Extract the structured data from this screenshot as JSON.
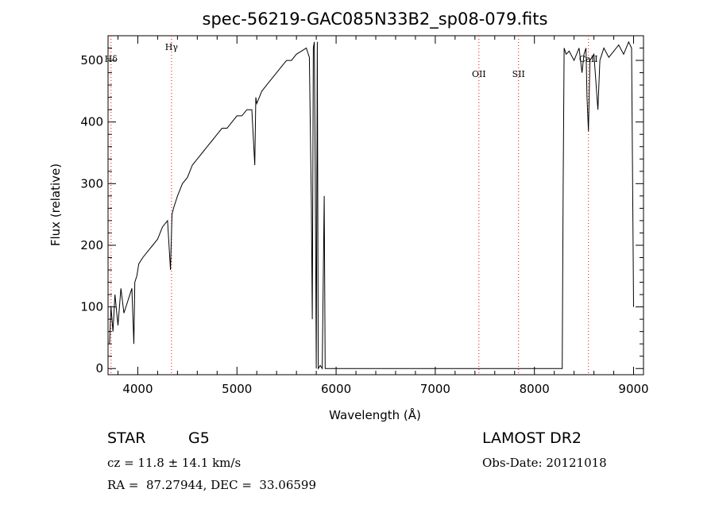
{
  "chart_data": {
    "type": "line",
    "title": "spec-56219-GAC085N33B2_sp08-079.fits",
    "xlabel": "Wavelength (Å)",
    "ylabel": "Flux (relative)",
    "xlim": [
      3700,
      9100
    ],
    "ylim": [
      -10,
      540
    ],
    "x_ticks": [
      4000,
      5000,
      6000,
      7000,
      8000,
      9000
    ],
    "y_ticks": [
      0,
      100,
      200,
      300,
      400,
      500
    ],
    "grid": false,
    "legend": "none",
    "line_color": "#000000",
    "marker_color": "#ff0000",
    "spectral_lines": [
      {
        "label": "Hδ",
        "wavelength": 3730
      },
      {
        "label": "Hγ",
        "wavelength": 4340
      },
      {
        "label": "OII",
        "wavelength": 7440
      },
      {
        "label": "SII",
        "wavelength": 7840
      },
      {
        "label": "CaII",
        "wavelength": 8545
      }
    ],
    "series": [
      {
        "x": [
          3715,
          3730,
          3750,
          3770,
          3800,
          3830,
          3860,
          3900,
          3940,
          3960,
          3970,
          3990,
          4010,
          4050,
          4100,
          4150,
          4200,
          4250,
          4300,
          4330,
          4345,
          4360,
          4400,
          4450,
          4500,
          4550,
          4600,
          4650,
          4700,
          4750,
          4800,
          4850,
          4900,
          4950,
          5000,
          5050,
          5100,
          5150,
          5180,
          5190,
          5200,
          5250,
          5300,
          5350,
          5400,
          5450,
          5500,
          5550,
          5600,
          5650,
          5700,
          5730,
          5750,
          5760,
          5770,
          5780,
          5790,
          5800,
          5810,
          5820,
          5840,
          5860,
          5880,
          5890,
          5900,
          5920,
          6000,
          6500,
          7000,
          7500,
          8000,
          8280,
          8290,
          8300,
          8320,
          8350,
          8400,
          8450,
          8480,
          8500,
          8520,
          8530,
          8545,
          8560,
          8580,
          8600,
          8640,
          8660,
          8680,
          8700,
          8750,
          8800,
          8850,
          8900,
          8950,
          8980,
          9000
        ],
        "y": [
          40,
          100,
          60,
          120,
          70,
          130,
          90,
          110,
          130,
          40,
          140,
          150,
          170,
          180,
          190,
          200,
          210,
          230,
          240,
          160,
          250,
          260,
          280,
          300,
          310,
          330,
          340,
          350,
          360,
          370,
          380,
          390,
          390,
          400,
          410,
          410,
          420,
          420,
          330,
          440,
          430,
          450,
          460,
          470,
          480,
          490,
          500,
          500,
          510,
          515,
          520,
          505,
          270,
          80,
          520,
          530,
          300,
          0,
          530,
          0,
          5,
          0,
          280,
          0,
          0,
          0,
          0,
          0,
          0,
          0,
          0,
          0,
          300,
          520,
          510,
          515,
          500,
          520,
          480,
          510,
          520,
          440,
          385,
          500,
          505,
          510,
          420,
          500,
          510,
          520,
          505,
          515,
          525,
          510,
          530,
          520,
          100
        ]
      }
    ]
  },
  "info": {
    "object_class": "STAR",
    "subclass": "G5",
    "survey": "LAMOST DR2",
    "cz": "cz = 11.8 ± 14.1 km/s",
    "obs_date": "Obs-Date: 20121018",
    "radec": "RA =  87.27944, DEC =  33.06599"
  }
}
